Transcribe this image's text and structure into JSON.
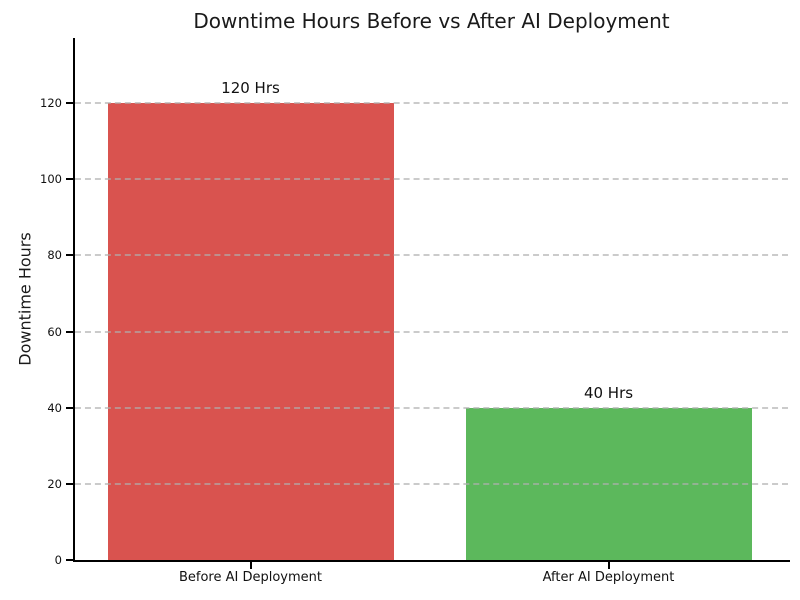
{
  "chart_data": {
    "type": "bar",
    "title": "Downtime Hours Before vs After AI Deployment",
    "categories": [
      "Before AI Deployment",
      "After AI Deployment"
    ],
    "values": [
      120,
      40
    ],
    "value_labels": [
      "120 Hrs",
      "40 Hrs"
    ],
    "bar_colors": [
      "#d9534f",
      "#5cb85c"
    ],
    "ylabel": "Downtime Hours",
    "xlabel": "",
    "yticks": [
      0,
      20,
      40,
      60,
      80,
      100,
      120
    ],
    "ylim": [
      0,
      137
    ],
    "grid": {
      "axis": "y",
      "style": "dashed",
      "color": "#afafaf"
    },
    "legend": "none",
    "background": "#ffffff",
    "spine_color": "#000000",
    "text_color": "#1a1a1a"
  }
}
